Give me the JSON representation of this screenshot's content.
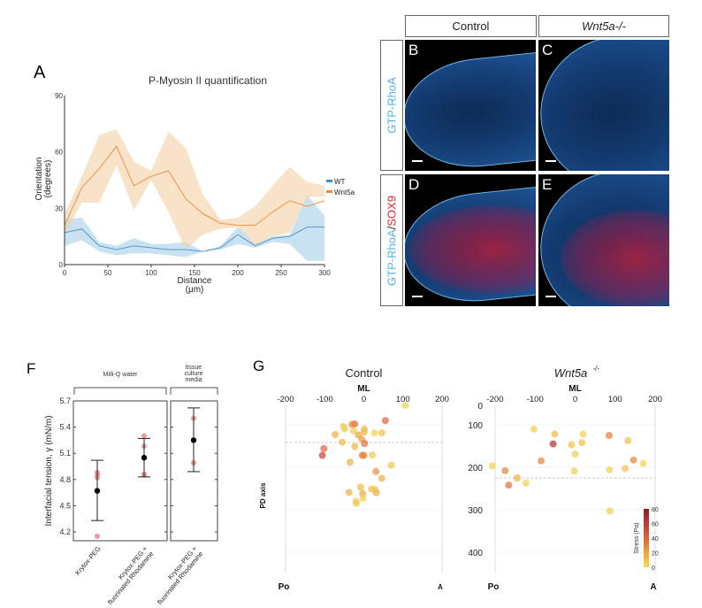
{
  "panel_labels": {
    "A": "A",
    "B": "B",
    "C": "C",
    "D": "D",
    "E": "E",
    "F": "F",
    "G": "G"
  },
  "microscopy": {
    "col_headers": [
      "Control",
      "Wnt5a-/-"
    ],
    "row_label_1": "GTP-RhoA",
    "row_label_2a": "GTP-RhoA",
    "row_label_2sep": "/",
    "row_label_2b": "SOX9",
    "colors": {
      "rhoa": "#4fb3f0",
      "sox9": "#e8242c"
    }
  },
  "chart_data": [
    {
      "id": "A",
      "type": "line",
      "title": "P-Myosin II quantification",
      "xlabel": "Distance",
      "xlabel_unit": "(μm)",
      "ylabel": "Orientation",
      "ylabel_unit": "(degrees)",
      "xlim": [
        0,
        300
      ],
      "ylim": [
        0,
        90
      ],
      "xticks": [
        0,
        50,
        100,
        150,
        200,
        250,
        300
      ],
      "yticks": [
        0,
        30,
        60,
        90
      ],
      "legend_position": "right",
      "x": [
        0,
        20,
        40,
        60,
        80,
        100,
        120,
        140,
        160,
        180,
        200,
        220,
        240,
        260,
        280,
        300
      ],
      "series": [
        {
          "name": "WT",
          "color": "#4a90c8",
          "band_color": "#9ccbe6",
          "values": [
            17,
            19,
            10,
            8,
            10,
            9,
            8,
            8,
            7,
            9,
            16,
            10,
            14,
            15,
            20,
            20
          ],
          "lower": [
            10,
            13,
            7,
            5,
            6,
            6,
            5,
            4,
            7,
            8,
            11,
            9,
            12,
            11,
            2,
            2
          ],
          "upper": [
            24,
            25,
            12,
            10,
            14,
            11,
            11,
            12,
            7,
            10,
            20,
            11,
            15,
            16,
            37,
            26
          ]
        },
        {
          "name": "Wnt5a",
          "color": "#f0883a",
          "band_color": "#f3cc9c",
          "values": [
            21,
            41,
            51,
            63,
            42,
            47,
            50,
            35,
            27,
            22,
            21,
            21,
            28,
            34,
            31,
            34
          ],
          "lower": [
            16,
            33,
            33,
            53,
            29,
            45,
            28,
            8,
            16,
            19,
            20,
            10,
            15,
            17,
            36,
            36
          ],
          "upper": [
            27,
            47,
            69,
            72,
            55,
            50,
            71,
            62,
            37,
            24,
            25,
            31,
            42,
            52,
            44,
            42
          ]
        }
      ]
    },
    {
      "id": "F",
      "type": "scatter",
      "ylabel": "Interfacial tension, γ (mN/m)",
      "ylim": [
        4.1,
        5.7
      ],
      "yticks": [
        "4.2",
        "4.5",
        "4.8",
        "5.1",
        "5.4",
        "5.7"
      ],
      "groups": [
        {
          "label": "Milli-Q water",
          "categories": [
            0,
            1
          ]
        },
        {
          "label": "tissue culture media",
          "label_lines": [
            "tissue",
            "culture",
            "media"
          ],
          "categories": [
            2
          ]
        }
      ],
      "categories": [
        {
          "label_lines": [
            "Krytox-PEG"
          ],
          "mean": 4.67,
          "err_low": 4.33,
          "err_high": 5.02,
          "points": [
            4.15,
            4.82,
            4.85,
            4.88
          ]
        },
        {
          "label_lines": [
            "Krytox-PEG +",
            "fluorinated Rhodamine"
          ],
          "mean": 5.05,
          "err_low": 4.83,
          "err_high": 5.27,
          "points": [
            5.3,
            5.18,
            4.86,
            4.85
          ]
        },
        {
          "label_lines": [
            "Krytox-PEG +",
            "fluorinated Rhodamine"
          ],
          "mean": 5.25,
          "err_low": 4.89,
          "err_high": 5.62,
          "points": [
            5.5,
            4.99
          ]
        }
      ],
      "point_color": "#e88a8a",
      "mean_color": "#000000"
    },
    {
      "id": "G",
      "type": "scatter",
      "panels": [
        {
          "title": "Control",
          "xlabel": "ML",
          "ylabel": "PD axis",
          "xticks": [
            -200,
            -100,
            0,
            100,
            200
          ],
          "yticks": [],
          "xlim": [
            -200,
            200
          ],
          "ylim": [
            0,
            440
          ],
          "corner_left": "Po",
          "corner_right": "A",
          "dashed_y": 142,
          "points": [
            [
              106,
              53,
              5
            ],
            [
              55,
              90,
              40
            ],
            [
              -23,
              98,
              35
            ],
            [
              -30,
              99,
              30
            ],
            [
              -52,
              104,
              8
            ],
            [
              -49,
              110,
              5
            ],
            [
              -26,
              114,
              8
            ],
            [
              1,
              110,
              12
            ],
            [
              1,
              117,
              12
            ],
            [
              -73,
              123,
              15
            ],
            [
              -14,
              124,
              20
            ],
            [
              27,
              119,
              5
            ],
            [
              46,
              119,
              10
            ],
            [
              -5,
              134,
              22
            ],
            [
              -55,
              141,
              12
            ],
            [
              2,
              144,
              35
            ],
            [
              -23,
              151,
              12
            ],
            [
              -102,
              156,
              40
            ],
            [
              -106,
              172,
              55
            ],
            [
              -4,
              172,
              30
            ],
            [
              0,
              172,
              30
            ],
            [
              22,
              171,
              8
            ],
            [
              -35,
              188,
              15
            ],
            [
              70,
              195,
              8
            ],
            [
              31,
              210,
              25
            ],
            [
              46,
              226,
              15
            ],
            [
              -8,
              247,
              12
            ],
            [
              -38,
              259,
              15
            ],
            [
              -3,
              262,
              18
            ],
            [
              19,
              251,
              8
            ],
            [
              28,
              252,
              8
            ],
            [
              32,
              260,
              15
            ],
            [
              -20,
              280,
              5
            ],
            [
              -19,
              285,
              8
            ],
            [
              -2,
              273,
              5
            ]
          ]
        },
        {
          "title": "Wnt5a",
          "title_sup": "-/-",
          "xlabel": "ML",
          "xticks": [
            -200,
            -100,
            0,
            100,
            200
          ],
          "yticks": [
            0,
            100,
            200,
            300,
            400
          ],
          "xlim": [
            -200,
            200
          ],
          "ylim": [
            0,
            440
          ],
          "corner_left": "Po",
          "corner_right": "A",
          "dashed_y": 225,
          "points": [
            [
              -103,
              110,
              5
            ],
            [
              -51,
              122,
              12
            ],
            [
              20,
              122,
              5
            ],
            [
              85,
              125,
              30
            ],
            [
              132,
              137,
              10
            ],
            [
              -55,
              145,
              65
            ],
            [
              -9,
              147,
              10
            ],
            [
              17,
              142,
              10
            ],
            [
              0,
              169,
              5
            ],
            [
              -85,
              185,
              28
            ],
            [
              146,
              183,
              28
            ],
            [
              170,
              191,
              5
            ],
            [
              -207,
              197,
              5
            ],
            [
              -175,
              208,
              30
            ],
            [
              -2,
              209,
              5
            ],
            [
              86,
              206,
              5
            ],
            [
              125,
              203,
              10
            ],
            [
              -145,
              225,
              15
            ],
            [
              -123,
              237,
              5
            ],
            [
              -166,
              242,
              35
            ],
            [
              87,
              303,
              5
            ]
          ]
        }
      ],
      "colorbar": {
        "label": "Stress (Pa)",
        "ticks": [
          0,
          20,
          40,
          60,
          80
        ],
        "range": [
          0,
          80
        ],
        "colors": [
          "#f2df5a",
          "#eea23e",
          "#e0623a",
          "#c03a3a",
          "#7a2424"
        ]
      }
    }
  ]
}
